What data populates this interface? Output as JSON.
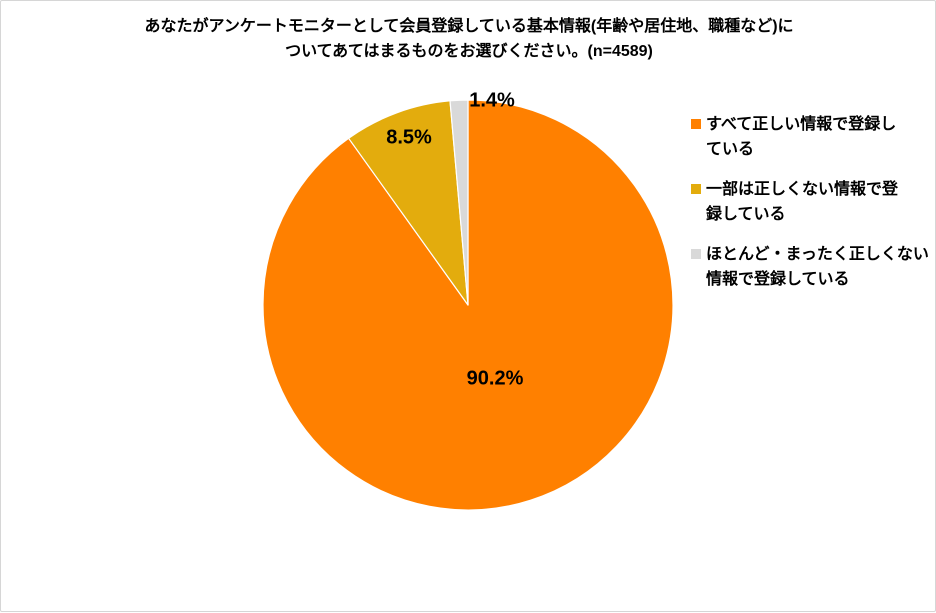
{
  "title": {
    "full": "あなたがアンケートモニターとして会員登録している基本情報(年齢や居住地、職種など)についてあてはまるものをお選びください。(n=4589)",
    "line1": "あなたがアンケートモニターとして会員登録している基本情報(年齢や居住地、職種など)に",
    "line2": "ついてあてはまるものをお選びください。(n=4589)"
  },
  "chart_data": {
    "type": "pie",
    "title": "あなたがアンケートモニターとして会員登録している基本情報(年齢や居住地、職種など)についてあてはまるものをお選びください。(n=4589)",
    "sample_size_text": "n=4589",
    "categories": [
      "すべて正しい情報で登録している",
      "一部は正しくない情報で登録している",
      "ほとんど・まったく正しくない情報で登録している"
    ],
    "values": [
      90.2,
      8.5,
      1.4
    ],
    "unit": "%",
    "labels": [
      "90.2%",
      "8.5%",
      "1.4%"
    ],
    "colors": [
      "#FF8000",
      "#E3AC0D",
      "#D9D9D9"
    ],
    "slice_border_color": "#FFFFFF",
    "start_angle": 0,
    "direction": "clockwise",
    "legend_position": "right",
    "grid": false
  },
  "legend": {
    "items": [
      {
        "label": "すべて正しい情報で登録している",
        "lines": [
          "すべて正しい情報で登録し",
          "ている"
        ],
        "color": "#FF8000"
      },
      {
        "label": "一部は正しくない情報で登録している",
        "lines": [
          "一部は正しくない情報で登",
          "録している"
        ],
        "color": "#E3AC0D"
      },
      {
        "label": "ほとんど・まったく正しくない情報で登録している",
        "lines": [
          "ほとんど・まったく正しくない",
          "情報で登録している"
        ],
        "color": "#D9D9D9"
      }
    ]
  }
}
